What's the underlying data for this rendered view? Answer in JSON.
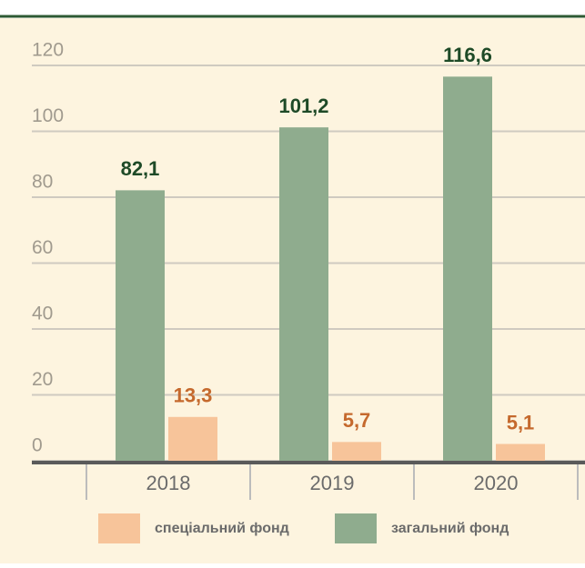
{
  "chart_data": {
    "type": "bar",
    "categories": [
      "2018",
      "2019",
      "2020"
    ],
    "series": [
      {
        "name": "спеціальний фонд",
        "color": "#f7c49a",
        "label_color": "#c5692d",
        "values": [
          13.3,
          5.7,
          5.1
        ],
        "value_labels": [
          "13,3",
          "5,7",
          "5,1"
        ]
      },
      {
        "name": "загальний фонд",
        "color": "#8fac8e",
        "label_color": "#1e4a27",
        "values": [
          82.1,
          101.2,
          116.6
        ],
        "value_labels": [
          "82,1",
          "101,2",
          "116,6"
        ]
      }
    ],
    "ylim": [
      0,
      120
    ],
    "yticks": [
      0,
      20,
      40,
      60,
      80,
      100,
      120
    ],
    "grid": true,
    "legend": "bottom"
  }
}
